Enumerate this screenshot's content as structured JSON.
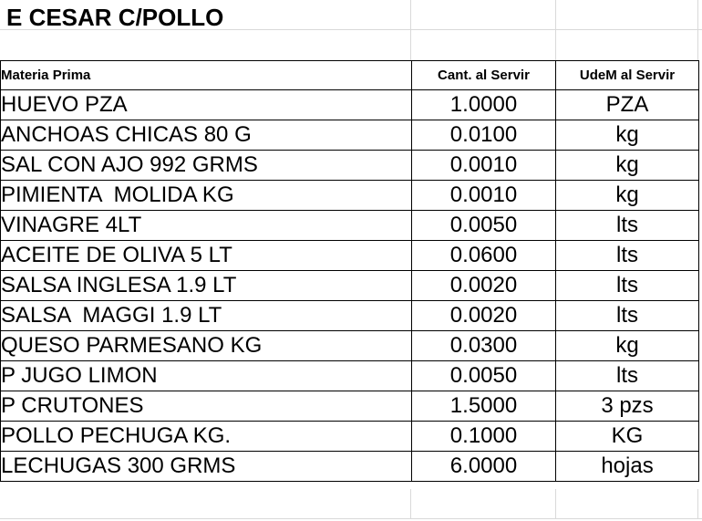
{
  "title": "E CESAR C/POLLO",
  "table": {
    "columns": [
      "Materia Prima",
      "Cant. al Servir",
      "UdeM al Servir"
    ],
    "rows": [
      [
        "HUEVO PZA",
        "1.0000",
        "PZA"
      ],
      [
        "ANCHOAS CHICAS 80 G",
        "0.0100",
        "kg"
      ],
      [
        "SAL CON AJO 992 GRMS",
        "0.0010",
        "kg"
      ],
      [
        "PIMIENTA  MOLIDA KG",
        "0.0010",
        "kg"
      ],
      [
        "VINAGRE 4LT",
        "0.0050",
        "lts"
      ],
      [
        "ACEITE DE OLIVA 5 LT",
        "0.0600",
        "lts"
      ],
      [
        "SALSA INGLESA 1.9 LT",
        "0.0020",
        "lts"
      ],
      [
        "SALSA  MAGGI 1.9 LT",
        "0.0020",
        "lts"
      ],
      [
        "QUESO PARMESANO KG",
        "0.0300",
        "kg"
      ],
      [
        "P JUGO LIMON",
        "0.0050",
        "lts"
      ],
      [
        "P CRUTONES",
        "1.5000",
        "3 pzs"
      ],
      [
        "POLLO PECHUGA KG.",
        "0.1000",
        "KG"
      ],
      [
        "LECHUGAS 300 GRMS",
        "6.0000",
        "hojas"
      ]
    ]
  },
  "colors": {
    "background": "#ffffff",
    "text": "#000000",
    "table_border": "#000000",
    "grid_line": "#d9d9d9"
  }
}
